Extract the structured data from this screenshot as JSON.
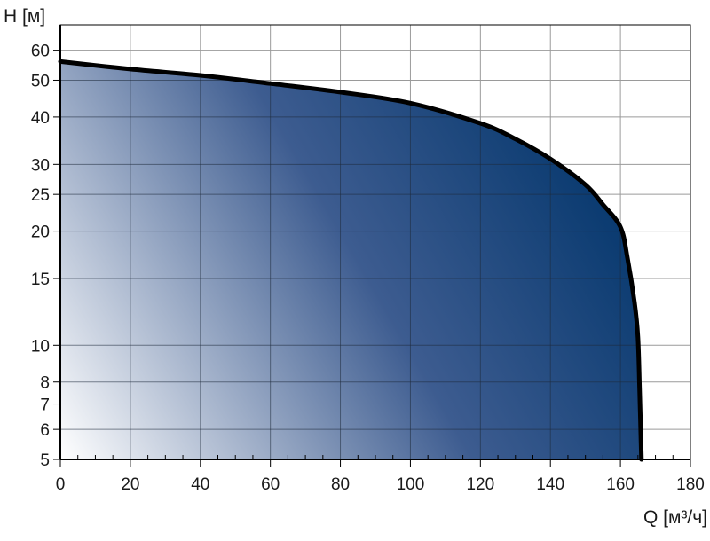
{
  "chart_data": {
    "type": "area",
    "xlabel": "Q [м³/ч]",
    "ylabel": "H [м]",
    "xlim": [
      0,
      180
    ],
    "ylim": [
      5,
      70
    ],
    "y_scale": "log",
    "grid": true,
    "x_ticks": [
      0,
      20,
      40,
      60,
      80,
      100,
      120,
      140,
      160,
      180
    ],
    "y_ticks": [
      5,
      6,
      7,
      8,
      10,
      15,
      20,
      25,
      30,
      40,
      50,
      60
    ],
    "series": [
      {
        "x": [
          0,
          20,
          40,
          60,
          80,
          100,
          120,
          130,
          140,
          150,
          155,
          160,
          162,
          164,
          165,
          165.5,
          166
        ],
        "y": [
          56,
          53.5,
          51.5,
          49,
          46.5,
          43.5,
          38.5,
          35,
          31,
          26.5,
          23.5,
          20.5,
          17,
          13,
          10.5,
          7.5,
          5
        ],
        "fill": "gradient"
      }
    ],
    "colors": {
      "line": "#000000",
      "fill_dark": "#00346a",
      "fill_mid": "#3d5c90",
      "fill_light": "#ffffff"
    }
  }
}
